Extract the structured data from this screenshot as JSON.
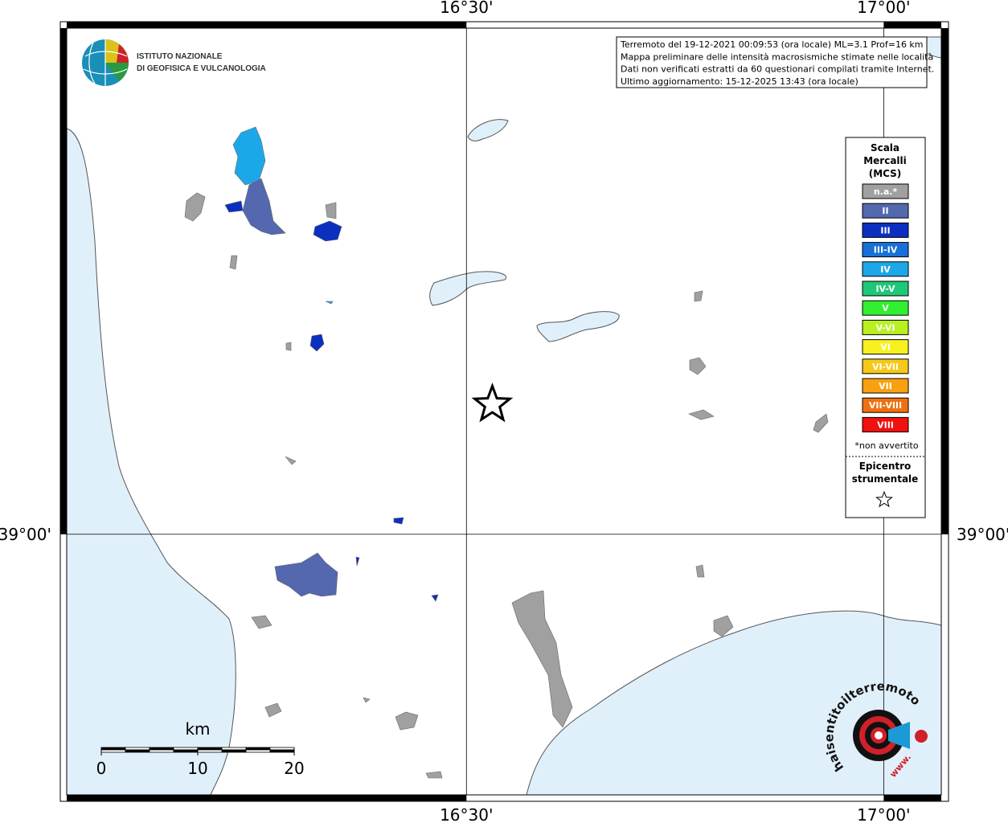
{
  "map": {
    "xlim": [
      16.021,
      17.069
    ],
    "ylim": [
      38.757,
      39.472
    ],
    "xticks": [
      {
        "value": 16.5,
        "label": "16°30'"
      },
      {
        "value": 17.0,
        "label": "17°00'"
      }
    ],
    "yticks": [
      {
        "value": 39.0,
        "label": "39°00'"
      }
    ],
    "epicenter": {
      "lon": 16.531,
      "lat": 39.121
    }
  },
  "institute": {
    "line1": "ISTITUTO NAZIONALE",
    "line2": "DI GEOFISICA E VULCANOLOGIA"
  },
  "info": [
    "Terremoto del 19-12-2021 00:09:53 (ora locale) ML=3.1 Prof=16 km",
    "Mappa preliminare delle intensità macrosismiche stimate nelle località",
    "Dati non verificati estratti da 60 questionari compilati tramite Internet.",
    "Ultimo aggiornamento: 15-12-2025 13:43 (ora locale)"
  ],
  "legend": {
    "title": [
      "Scala",
      "Mercalli",
      "(MCS)"
    ],
    "items": [
      {
        "label": "n.a.*",
        "color": "#a0a0a0"
      },
      {
        "label": "II",
        "color": "#5468b0"
      },
      {
        "label": "III",
        "color": "#0b30c0"
      },
      {
        "label": "III-IV",
        "color": "#1670d8"
      },
      {
        "label": "IV",
        "color": "#1ca8e8"
      },
      {
        "label": "IV-V",
        "color": "#1ec878"
      },
      {
        "label": "V",
        "color": "#30f030"
      },
      {
        "label": "V-VI",
        "color": "#b8f020"
      },
      {
        "label": "VI",
        "color": "#f8f020"
      },
      {
        "label": "VI-VII",
        "color": "#f8c818"
      },
      {
        "label": "VII",
        "color": "#f8a010"
      },
      {
        "label": "VII-VIII",
        "color": "#f07010"
      },
      {
        "label": "VIII",
        "color": "#f01010"
      }
    ],
    "note": "*non avvertito",
    "epicenter_label": [
      "Epicentro",
      "strumentale"
    ]
  },
  "scale_bar": {
    "unit": "km",
    "ticks": [
      0,
      10,
      20
    ]
  },
  "logo": {
    "text": "haisentitoilterremoto.it",
    "prefix": "www."
  }
}
